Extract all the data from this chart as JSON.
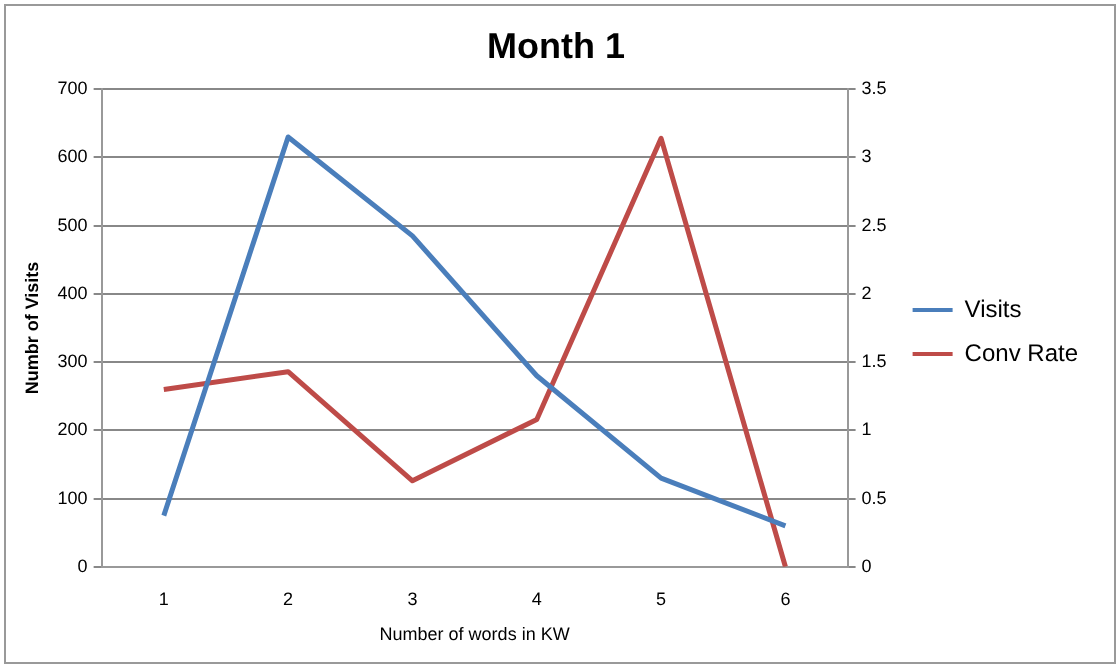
{
  "chart_data": {
    "type": "line",
    "title": "Month 1",
    "xlabel": "Number of words in KW",
    "ylabel": "Numbr of Visits",
    "categories": [
      "1",
      "2",
      "3",
      "4",
      "5",
      "6"
    ],
    "series": [
      {
        "name": "Visits",
        "color": "#4a7ebb",
        "values": [
          75,
          630,
          485,
          280,
          130,
          60
        ]
      },
      {
        "name": "Conv Rate",
        "color": "#be4b48",
        "axis": "y2",
        "values": [
          1.3,
          1.43,
          0.63,
          1.08,
          3.14,
          0
        ]
      }
    ],
    "ylim": [
      0,
      700
    ],
    "yticks": [
      0,
      100,
      200,
      300,
      400,
      500,
      600,
      700
    ],
    "y2lim": [
      0,
      3.5
    ],
    "y2ticks": [
      0,
      0.5,
      1,
      1.5,
      2,
      2.5,
      3,
      3.5
    ],
    "grid": "y",
    "legend": "right",
    "marker": "none"
  }
}
